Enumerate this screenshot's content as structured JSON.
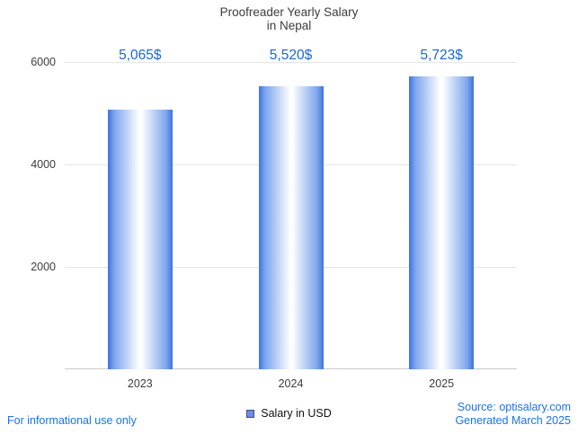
{
  "title": {
    "line1": "Proofreader Yearly Salary",
    "line2": "in Nepal"
  },
  "legend": {
    "label": "Salary in USD"
  },
  "footer": {
    "left": "For informational use only",
    "source": "Source: optisalary.com",
    "generated": "Generated March 2025"
  },
  "colors": {
    "bar": "#3e73de",
    "value_label": "#1967d2",
    "footer_link": "#1a73e8",
    "legend_swatch": "#6d8ce8"
  },
  "chart_data": {
    "type": "bar",
    "title": "Proofreader Yearly Salary in Nepal",
    "categories": [
      "2023",
      "2024",
      "2025"
    ],
    "values": [
      5065,
      5520,
      5723
    ],
    "value_labels": [
      "5,065$",
      "5,520$",
      "5,723$"
    ],
    "series_name": "Salary in USD",
    "xlabel": "",
    "ylabel": "",
    "ylim": [
      0,
      6000
    ],
    "yticks": [
      2000,
      4000,
      6000
    ],
    "grid": true,
    "legend_position": "bottom"
  }
}
